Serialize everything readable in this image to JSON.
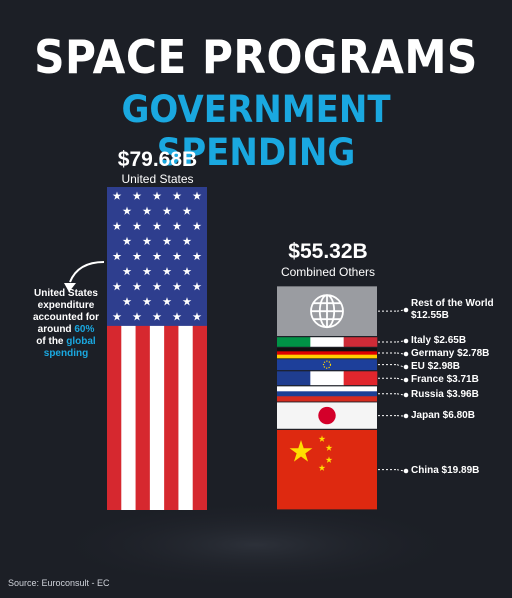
{
  "title": "SPACE PROGRAMS",
  "subtitle": "GOVERNMENT SPENDING",
  "us": {
    "amount": "$79.68B",
    "label": "United States"
  },
  "others": {
    "amount": "$55.32B",
    "label": "Combined Others"
  },
  "annotation": {
    "line1": "United States",
    "line2": "expenditure",
    "line3": "accounted for",
    "line4_pre": "around ",
    "line4_pct": "60%",
    "line5_pre": "of the ",
    "line5_hl": "global",
    "line6": "spending"
  },
  "source": "Source: Euroconsult - EC",
  "colors": {
    "accent": "#1aa8e0",
    "background": "#1c1f26",
    "us_blue": "#2e3e8e",
    "us_red": "#d6282f",
    "china_red": "#de2910"
  },
  "chart_data": {
    "type": "bar",
    "title": "SPACE PROGRAMS",
    "subtitle": "GOVERNMENT SPENDING",
    "unit": "USD billions",
    "categories": [
      "United States",
      "Combined Others"
    ],
    "values": [
      79.68,
      55.32
    ],
    "breakdown": [
      {
        "name": "China",
        "value": 19.89,
        "label": "China $19.89B"
      },
      {
        "name": "Japan",
        "value": 6.8,
        "label": "Japan $6.80B"
      },
      {
        "name": "Russia",
        "value": 3.96,
        "label": "Russia $3.96B"
      },
      {
        "name": "France",
        "value": 3.71,
        "label": "France $3.71B"
      },
      {
        "name": "EU",
        "value": 2.98,
        "label": "EU $2.98B"
      },
      {
        "name": "Germany",
        "value": 2.78,
        "label": "Germany $2.78B"
      },
      {
        "name": "Italy",
        "value": 2.65,
        "label": "Italy $2.65B"
      },
      {
        "name": "Rest of the World",
        "value": 12.55,
        "label_lines": [
          "Rest of the World",
          "$12.55B"
        ]
      }
    ]
  }
}
